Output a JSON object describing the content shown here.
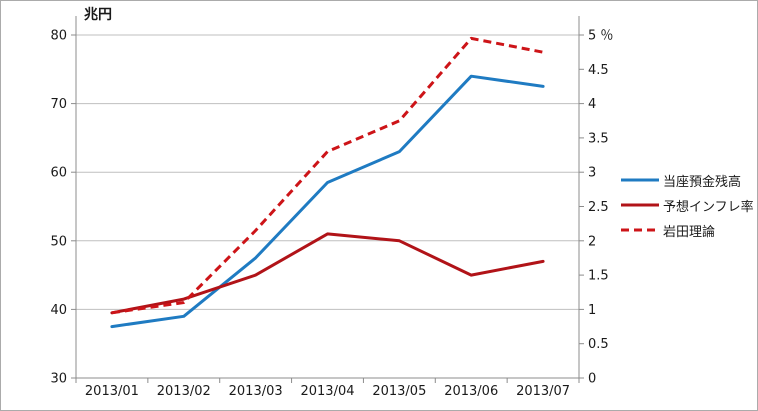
{
  "chart_data": {
    "type": "line",
    "title": "",
    "categories": [
      "2013/01",
      "2013/02",
      "2013/03",
      "2013/04",
      "2013/05",
      "2013/06",
      "2013/07"
    ],
    "left_axis": {
      "title": "兆円",
      "range": [
        30,
        80
      ],
      "ticks": [
        80,
        70,
        60,
        50,
        40,
        30
      ]
    },
    "right_axis": {
      "unit": "％",
      "range": [
        0,
        5
      ],
      "ticks": [
        5,
        4.5,
        4,
        3.5,
        3,
        2.5,
        2,
        1.5,
        1,
        0.5,
        0
      ]
    },
    "series": [
      {
        "name": "当座預金残高",
        "axis": "left",
        "style": "solid",
        "color": "#1f7bc2",
        "values": [
          37.5,
          39,
          47.5,
          58.5,
          63,
          74,
          72.5
        ]
      },
      {
        "name": "予想インフレ率",
        "axis": "right",
        "style": "solid",
        "color": "#b11318",
        "values": [
          0.95,
          1.15,
          1.5,
          2.1,
          2.0,
          1.5,
          1.7
        ]
      },
      {
        "name": "岩田理論",
        "axis": "right",
        "style": "dashed",
        "color": "#cd1418",
        "values": [
          0.95,
          1.1,
          2.15,
          3.3,
          3.75,
          4.95,
          4.75
        ]
      }
    ],
    "legend_position": "right",
    "grid": true,
    "colors": {
      "gridline": "#bfbfbf",
      "axis": "#8c8c8c",
      "text": "#1a1a1a",
      "background": "#ffffff",
      "border": "#ababab"
    }
  }
}
